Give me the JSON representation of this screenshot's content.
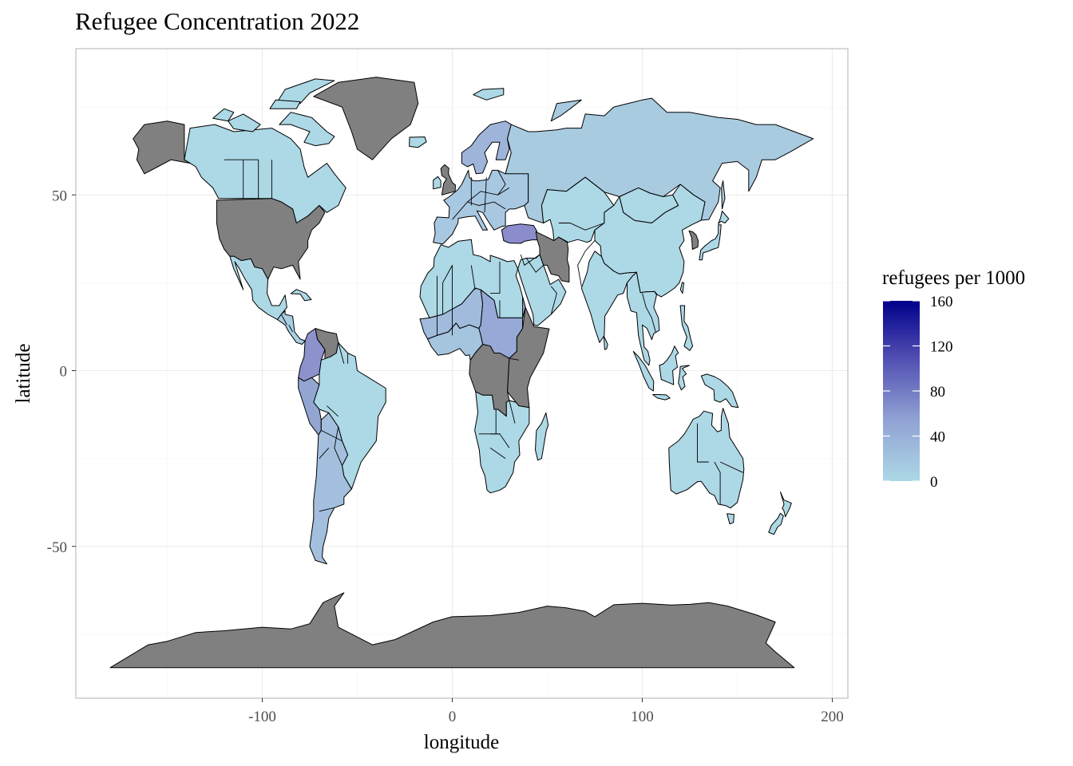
{
  "chart_data": {
    "type": "map",
    "title": "Refugee Concentration 2022",
    "xlabel": "longitude",
    "ylabel": "latitude",
    "x_ticks": [
      -100,
      0,
      100,
      200
    ],
    "y_ticks": [
      50,
      0,
      -50
    ],
    "x_tick_labels": [
      "-100",
      "0",
      "100",
      "200"
    ],
    "y_tick_labels": [
      "50",
      "0",
      "-50"
    ],
    "xlim": [
      -195,
      210
    ],
    "ylim": [
      -92,
      92
    ],
    "grid": true,
    "legend": {
      "title": "refugees per 1000",
      "placement": "right",
      "breaks": [
        160,
        120,
        80,
        40,
        0
      ],
      "break_labels": [
        "160",
        "120",
        "80",
        "40",
        "0"
      ],
      "low_color": "#add8e6",
      "high_color": "#00008b",
      "na_color": "#808080",
      "range": [
        0,
        160
      ]
    },
    "regions": [
      {
        "name": "Canada",
        "fill": "#add8e6"
      },
      {
        "name": "Alaska",
        "fill": "#808080"
      },
      {
        "name": "Greenland",
        "fill": "#808080"
      },
      {
        "name": "USA",
        "fill": "#808080"
      },
      {
        "name": "Mexico",
        "fill": "#add8e6"
      },
      {
        "name": "Central America",
        "fill": "#a9cfe3"
      },
      {
        "name": "Colombia/Ecuador",
        "fill": "#8d92cc"
      },
      {
        "name": "Venezuela",
        "fill": "#808080"
      },
      {
        "name": "Brazil",
        "fill": "#add8e6"
      },
      {
        "name": "Peru",
        "fill": "#93a6d2"
      },
      {
        "name": "Chile/Argentina",
        "fill": "#a3bfdd"
      },
      {
        "name": "Europe",
        "fill": "#a8c8e2"
      },
      {
        "name": "Turkey",
        "fill": "#8a8ccb"
      },
      {
        "name": "Russia",
        "fill": "#a9cbe0"
      },
      {
        "name": "Iran",
        "fill": "#808080"
      },
      {
        "name": "Central Asia",
        "fill": "#add8e6"
      },
      {
        "name": "China",
        "fill": "#add8e6"
      },
      {
        "name": "Mongolia",
        "fill": "#add8e6"
      },
      {
        "name": "India",
        "fill": "#add8e6"
      },
      {
        "name": "Southeast Asia",
        "fill": "#add8e6"
      },
      {
        "name": "Japan",
        "fill": "#add8e6"
      },
      {
        "name": "Arabian Peninsula",
        "fill": "#add8e6"
      },
      {
        "name": "North Africa",
        "fill": "#add8e6"
      },
      {
        "name": "Sahel",
        "fill": "#a0bbdb"
      },
      {
        "name": "Sudan/Chad",
        "fill": "#97a9d6"
      },
      {
        "name": "DR Congo",
        "fill": "#808080"
      },
      {
        "name": "East Africa",
        "fill": "#808080"
      },
      {
        "name": "Southern Africa",
        "fill": "#add8e6"
      },
      {
        "name": "Madagascar",
        "fill": "#add8e6"
      },
      {
        "name": "Australia",
        "fill": "#add8e6"
      },
      {
        "name": "New Zealand",
        "fill": "#add8e6"
      },
      {
        "name": "Indonesia",
        "fill": "#add8e6"
      },
      {
        "name": "Papua New Guinea",
        "fill": "#add8e6"
      },
      {
        "name": "Arctic Islands",
        "fill": "#add8e6"
      },
      {
        "name": "Scandinavia",
        "fill": "#9fb4d9"
      },
      {
        "name": "UK",
        "fill": "#808080"
      },
      {
        "name": "Antarctica",
        "fill": "#808080"
      }
    ]
  }
}
